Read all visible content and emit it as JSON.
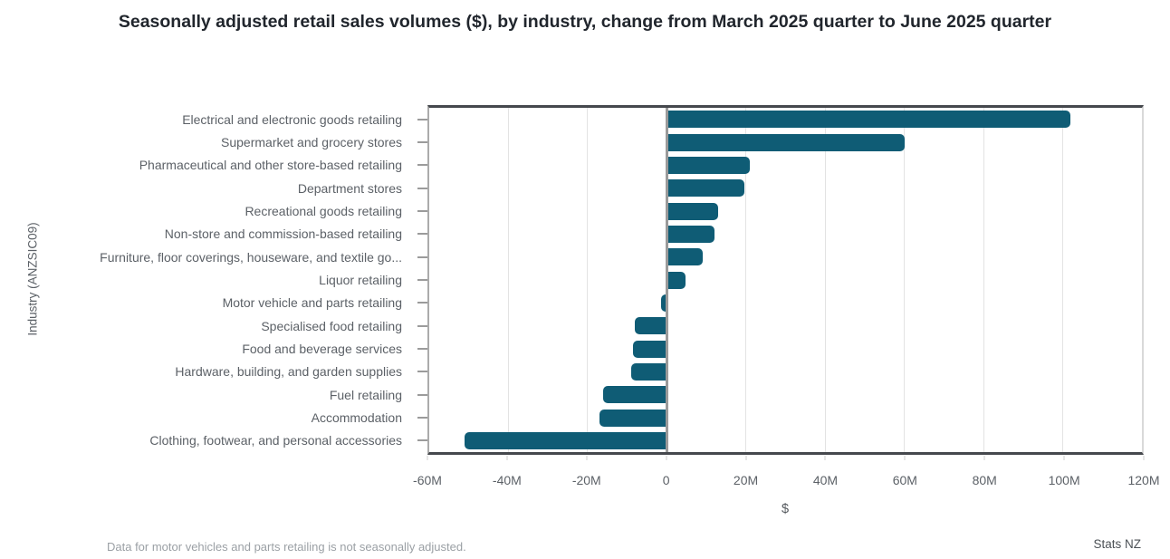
{
  "page": {
    "footnote": "Data for motor vehicles and parts retailing is not seasonally adjusted.",
    "attribution": "Stats NZ"
  },
  "chart_data": {
    "type": "bar",
    "orientation": "horizontal",
    "title": "Seasonally adjusted retail sales volumes ($), by industry, change from March 2025 quarter to June 2025 quarter",
    "xlabel": "$",
    "ylabel": "Industry (ANZSIC09)",
    "values_unit": "millions of dollars",
    "xlim": [
      -60,
      120
    ],
    "grid": true,
    "legend": false,
    "bar_color": "#0f5c75",
    "x_ticks": [
      {
        "value": -60,
        "label": "-60M"
      },
      {
        "value": -40,
        "label": "-40M"
      },
      {
        "value": -20,
        "label": "-20M"
      },
      {
        "value": 0,
        "label": "0"
      },
      {
        "value": 20,
        "label": "20M"
      },
      {
        "value": 40,
        "label": "40M"
      },
      {
        "value": 60,
        "label": "60M"
      },
      {
        "value": 80,
        "label": "80M"
      },
      {
        "value": 100,
        "label": "100M"
      },
      {
        "value": 120,
        "label": "120M"
      }
    ],
    "categories": [
      "Electrical and electronic goods retailing",
      "Supermarket and grocery stores",
      "Pharmaceutical and other store-based retailing",
      "Department stores",
      "Recreational goods retailing",
      "Non-store and commission-based retailing",
      "Furniture, floor coverings, houseware, and textile go...",
      "Liquor retailing",
      "Motor vehicle and parts retailing",
      "Specialised food retailing",
      "Food and beverage services",
      "Hardware, building, and garden supplies",
      "Fuel retailing",
      "Accommodation",
      "Clothing, footwear, and personal accessories"
    ],
    "values": [
      102,
      60,
      21,
      19.5,
      13,
      12,
      9,
      4.7,
      -1.5,
      -8,
      -8.5,
      -9,
      -16,
      -17,
      -51
    ]
  }
}
